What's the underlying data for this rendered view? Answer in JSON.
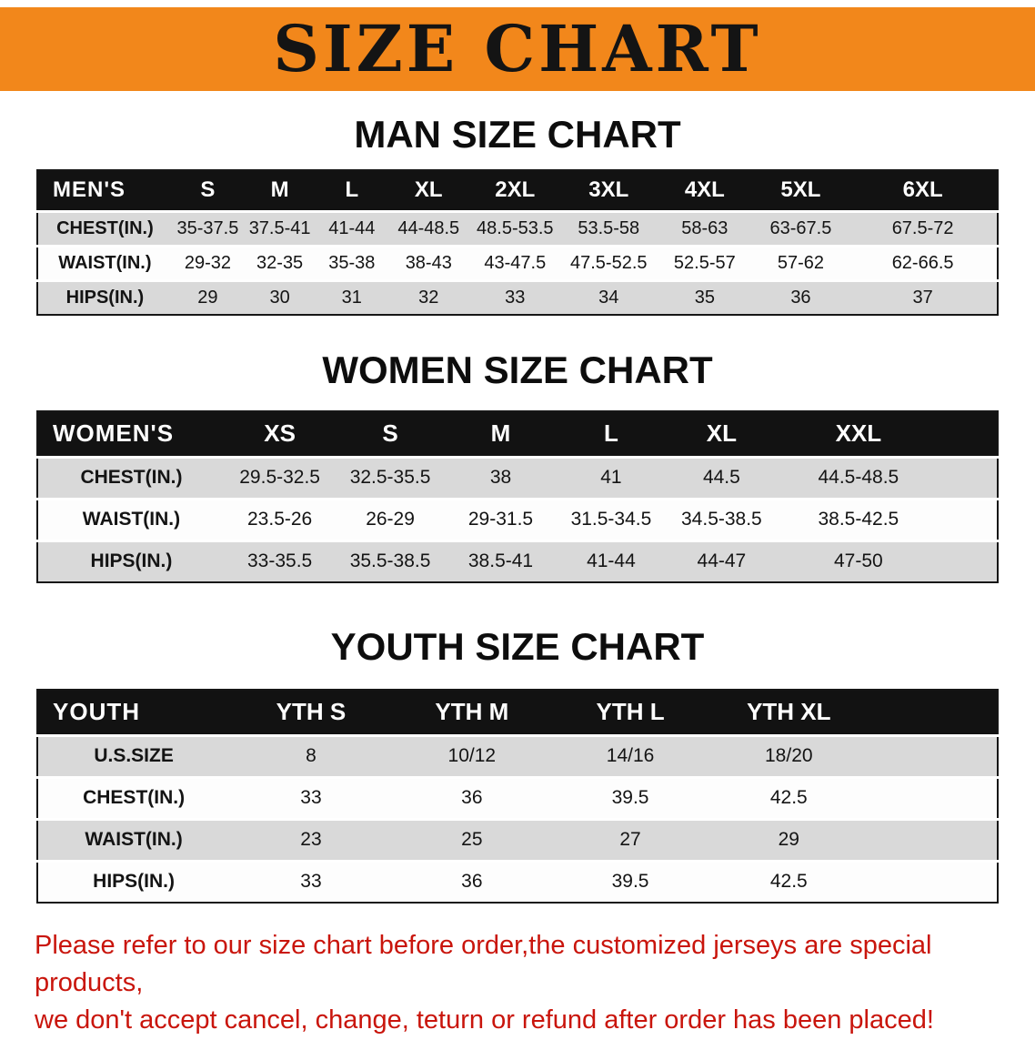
{
  "banner": {
    "title": "SIZE CHART"
  },
  "colors": {
    "banner_bg": "#f2871b",
    "banner_text": "#141414",
    "table_header_bg": "#121212",
    "table_header_text": "#ffffff",
    "row_shaded_bg": "#d9d9d9",
    "row_plain_bg": "#fdfdfd",
    "note_text": "#c9150c"
  },
  "sections": [
    {
      "id": "men",
      "title": "MAN SIZE CHART",
      "columns": [
        "MEN'S",
        "S",
        "M",
        "L",
        "XL",
        "2XL",
        "3XL",
        "4XL",
        "5XL",
        "6XL"
      ],
      "rows": [
        [
          "CHEST(IN.)",
          "35-37.5",
          "37.5-41",
          "41-44",
          "44-48.5",
          "48.5-53.5",
          "53.5-58",
          "58-63",
          "63-67.5",
          "67.5-72"
        ],
        [
          "WAIST(IN.)",
          "29-32",
          "32-35",
          "35-38",
          "38-43",
          "43-47.5",
          "47.5-52.5",
          "52.5-57",
          "57-62",
          "62-66.5"
        ],
        [
          "HIPS(IN.)",
          "29",
          "30",
          "31",
          "32",
          "33",
          "34",
          "35",
          "36",
          "37"
        ]
      ]
    },
    {
      "id": "women",
      "title": "WOMEN SIZE CHART",
      "columns": [
        "WOMEN'S",
        "XS",
        "S",
        "M",
        "L",
        "XL",
        "XXL"
      ],
      "rows": [
        [
          "CHEST(IN.)",
          "29.5-32.5",
          "32.5-35.5",
          "38",
          "41",
          "44.5",
          "44.5-48.5"
        ],
        [
          "WAIST(IN.)",
          "23.5-26",
          "26-29",
          "29-31.5",
          "31.5-34.5",
          "34.5-38.5",
          "38.5-42.5"
        ],
        [
          "HIPS(IN.)",
          "33-35.5",
          "35.5-38.5",
          "38.5-41",
          "41-44",
          "44-47",
          "47-50"
        ]
      ]
    },
    {
      "id": "youth",
      "title": "YOUTH SIZE CHART",
      "columns": [
        "YOUTH",
        "YTH S",
        "YTH M",
        "YTH L",
        "YTH XL"
      ],
      "rows": [
        [
          "U.S.SIZE",
          "8",
          "10/12",
          "14/16",
          "18/20"
        ],
        [
          "CHEST(IN.)",
          "33",
          "36",
          "39.5",
          "42.5"
        ],
        [
          "WAIST(IN.)",
          "23",
          "25",
          "27",
          "29"
        ],
        [
          "HIPS(IN.)",
          "33",
          "36",
          "39.5",
          "42.5"
        ]
      ]
    }
  ],
  "footer": {
    "line1": "Please refer to our size chart before order,the customized jerseys are special products,",
    "line2": "we don't accept cancel, change, teturn or refund after order has been placed!"
  }
}
